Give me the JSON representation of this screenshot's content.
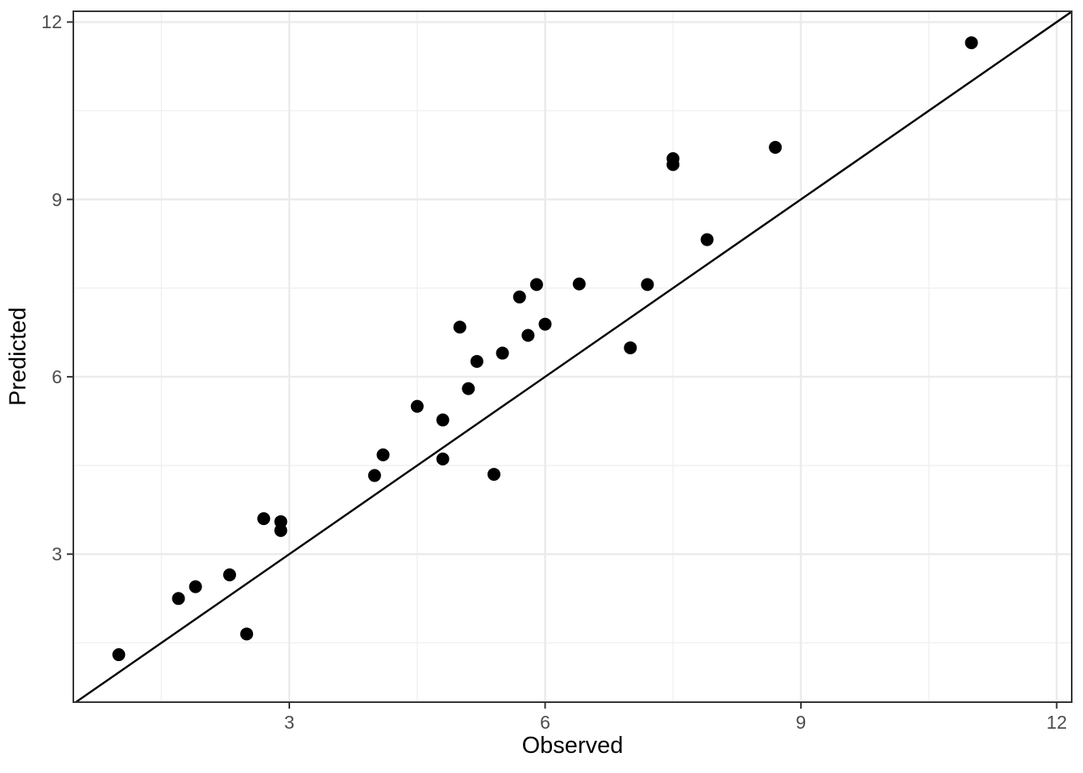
{
  "chart_data": {
    "type": "scatter",
    "xlabel": "Observed",
    "ylabel": "Predicted",
    "xlim": [
      0.467,
      12.176
    ],
    "ylim": [
      0.497,
      12.182
    ],
    "x_ticks": [
      3,
      6,
      9,
      12
    ],
    "x_tick_labels": [
      "3",
      "6",
      "9",
      "12"
    ],
    "y_ticks": [
      3,
      6,
      9,
      12
    ],
    "y_tick_labels": [
      "3",
      "6",
      "9",
      "12"
    ],
    "x_minor_ticks": [
      1.5,
      4.5,
      7.5,
      10.5
    ],
    "y_minor_ticks": [
      1.5,
      4.5,
      7.5,
      10.5
    ],
    "grid": true,
    "legend": "none",
    "reference_line": {
      "type": "identity",
      "slope": 1,
      "intercept": 0
    },
    "points": [
      [
        1.0,
        1.3
      ],
      [
        1.7,
        2.25
      ],
      [
        1.9,
        2.45
      ],
      [
        2.3,
        2.65
      ],
      [
        2.5,
        1.65
      ],
      [
        2.7,
        3.6
      ],
      [
        2.9,
        3.55
      ],
      [
        2.9,
        3.4
      ],
      [
        4.0,
        4.33
      ],
      [
        4.1,
        4.68
      ],
      [
        4.5,
        5.5
      ],
      [
        4.8,
        5.27
      ],
      [
        4.8,
        4.61
      ],
      [
        5.0,
        6.84
      ],
      [
        5.1,
        5.8
      ],
      [
        5.2,
        6.26
      ],
      [
        5.4,
        4.35
      ],
      [
        5.5,
        6.4
      ],
      [
        5.7,
        7.35
      ],
      [
        5.8,
        6.7
      ],
      [
        5.9,
        7.56
      ],
      [
        6.0,
        6.89
      ],
      [
        6.4,
        7.57
      ],
      [
        7.0,
        6.49
      ],
      [
        7.2,
        7.56
      ],
      [
        7.5,
        9.69
      ],
      [
        7.5,
        9.59
      ],
      [
        7.9,
        8.32
      ],
      [
        8.7,
        9.88
      ],
      [
        11.0,
        11.65
      ]
    ],
    "colors": {
      "point": "#000000",
      "line": "#000000",
      "grid_major": "#ebebeb",
      "grid_minor": "#f1f1f1",
      "panel_border": "#333333",
      "tick_mark": "#333333",
      "tick_label": "#4d4d4d",
      "axis_title": "#000000",
      "background": "#ffffff"
    }
  }
}
